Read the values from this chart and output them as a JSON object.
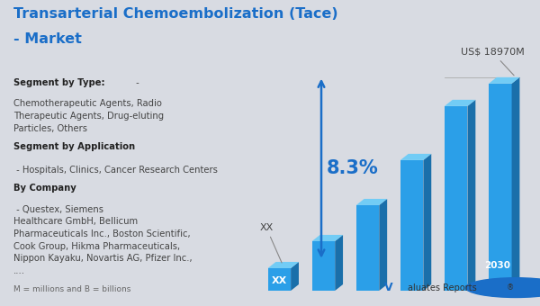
{
  "title_line1": "Transarterial Chemoembolization (Tace)",
  "title_line2": "- Market",
  "title_color": "#1A6EC8",
  "title_fontsize": 11.5,
  "bg_color": "#d8dbe2",
  "bar_values": [
    1.0,
    2.2,
    3.8,
    5.8,
    8.2,
    9.2
  ],
  "bar_color_front": "#2b9fe8",
  "bar_color_top": "#72ccf5",
  "bar_color_side": "#1a6faa",
  "arrow_color": "#1A6EC8",
  "cagr_text": "8.3%",
  "cagr_color": "#1A6EC8",
  "annotation_xx": "XX",
  "annotation_value": "US$ 18970M",
  "footer_text": "M = millions and B = billions",
  "footer_color": "#666666",
  "logo_v_color": "#1A6EC8",
  "logo_rest_color": "#333333"
}
